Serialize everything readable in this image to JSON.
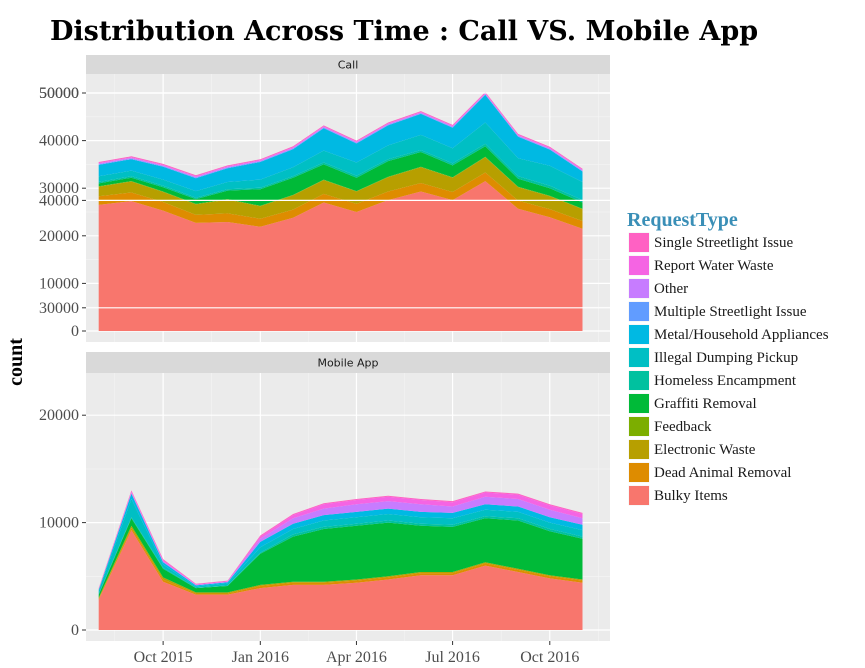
{
  "chart_data": {
    "type": "area",
    "stacked": true,
    "title": "Distribution Across Time : Call VS. Mobile App",
    "ylabel": "count",
    "xlabel": "",
    "ylim": [
      0,
      55000
    ],
    "yticks": [
      0,
      10000,
      20000,
      30000,
      40000,
      50000
    ],
    "xticks": [
      {
        "label": "Oct 2015",
        "date": "2015-10-01"
      },
      {
        "label": "Jan 2016",
        "date": "2016-01-01"
      },
      {
        "label": "Apr 2016",
        "date": "2016-04-01"
      },
      {
        "label": "Jul 2016",
        "date": "2016-07-01"
      },
      {
        "label": "Oct 2016",
        "date": "2016-10-01"
      }
    ],
    "xlim": [
      "2015-07-20",
      "2016-11-27"
    ],
    "grid": true,
    "legend": {
      "title": "RequestType",
      "position": "right",
      "items": [
        {
          "label": "Single Streetlight Issue",
          "color": "#FF61C3"
        },
        {
          "label": "Report Water Waste",
          "color": "#F564E3"
        },
        {
          "label": "Other",
          "color": "#C77CFF"
        },
        {
          "label": "Multiple Streetlight Issue",
          "color": "#619CFF"
        },
        {
          "label": "Metal/Household Appliances",
          "color": "#00B9E3"
        },
        {
          "label": "Illegal Dumping Pickup",
          "color": "#00BFC4"
        },
        {
          "label": "Homeless Encampment",
          "color": "#00C19F"
        },
        {
          "label": "Graffiti Removal",
          "color": "#00BA38"
        },
        {
          "label": "Feedback",
          "color": "#7CAE00"
        },
        {
          "label": "Electronic Waste",
          "color": "#B79F00"
        },
        {
          "label": "Dead Animal Removal",
          "color": "#DE8C00"
        },
        {
          "label": "Bulky Items",
          "color": "#F8766D"
        }
      ]
    },
    "dates": [
      "2015-08-01",
      "2015-09-01",
      "2015-10-01",
      "2015-11-01",
      "2015-12-01",
      "2016-01-01",
      "2016-02-01",
      "2016-03-01",
      "2016-04-01",
      "2016-05-01",
      "2016-06-01",
      "2016-07-01",
      "2016-08-01",
      "2016-09-01",
      "2016-10-01",
      "2016-11-01"
    ],
    "panels": [
      {
        "label": "Call",
        "series": [
          {
            "name": "Bulky Items",
            "values": [
              26500,
              27300,
              25300,
              22700,
              22900,
              21900,
              23800,
              27000,
              25000,
              27500,
              29300,
              27500,
              31500,
              25700,
              23900,
              21500
            ]
          },
          {
            "name": "Dead Animal Removal",
            "values": [
              1800,
              1800,
              1800,
              1700,
              1800,
              1700,
              1700,
              1800,
              1700,
              1800,
              1800,
              1700,
              1800,
              1700,
              1700,
              1600
            ]
          },
          {
            "name": "Electronic Waste",
            "values": [
              2000,
              2300,
              2100,
              2200,
              2900,
              2600,
              3000,
              2900,
              2600,
              3000,
              3300,
              3000,
              3200,
              2800,
              2700,
              2500
            ]
          },
          {
            "name": "Feedback",
            "values": [
              100,
              100,
              100,
              100,
              100,
              100,
              100,
              100,
              100,
              100,
              100,
              100,
              100,
              100,
              100,
              100
            ]
          },
          {
            "name": "Graffiti Removal",
            "values": [
              600,
              700,
              900,
              1000,
              1800,
              3500,
              3600,
              3200,
              2800,
              3300,
              3100,
              2500,
              2200,
              1700,
              1600,
              1300
            ]
          },
          {
            "name": "Homeless Encampment",
            "values": [
              300,
              300,
              300,
              300,
              300,
              300,
              300,
              400,
              400,
              400,
              400,
              400,
              500,
              500,
              500,
              500
            ]
          },
          {
            "name": "Illegal Dumping Pickup",
            "values": [
              1200,
              1200,
              1300,
              1400,
              1500,
              1700,
              1900,
              2500,
              2800,
              2900,
              3200,
              3200,
              4500,
              3800,
              4200,
              3800
            ]
          },
          {
            "name": "Metal/Household Appliances",
            "values": [
              2400,
              2400,
              2700,
              2700,
              2900,
              3700,
              3800,
              4700,
              4000,
              4200,
              4400,
              4300,
              5800,
              4500,
              3400,
              2200
            ]
          },
          {
            "name": "Multiple Streetlight Issue",
            "values": [
              100,
              100,
              100,
              100,
              100,
              100,
              100,
              100,
              100,
              100,
              100,
              100,
              100,
              100,
              100,
              100
            ]
          },
          {
            "name": "Other",
            "values": [
              200,
              200,
              200,
              200,
              200,
              200,
              200,
              200,
              200,
              200,
              200,
              200,
              200,
              200,
              200,
              200
            ]
          },
          {
            "name": "Report Water Waste",
            "values": [
              100,
              100,
              100,
              100,
              100,
              100,
              100,
              100,
              100,
              100,
              100,
              100,
              100,
              100,
              100,
              100
            ]
          },
          {
            "name": "Single Streetlight Issue",
            "values": [
              200,
              200,
              200,
              200,
              200,
              200,
              200,
              200,
              200,
              200,
              200,
              200,
              200,
              200,
              200,
              200
            ]
          }
        ]
      },
      {
        "label": "Mobile App",
        "series": [
          {
            "name": "Bulky Items",
            "values": [
              2800,
              9300,
              4500,
              3300,
              3300,
              3900,
              4200,
              4200,
              4400,
              4700,
              5100,
              5100,
              6000,
              5400,
              4800,
              4400
            ]
          },
          {
            "name": "Dead Animal Removal",
            "values": [
              100,
              200,
              200,
              100,
              100,
              200,
              200,
              200,
              200,
              200,
              200,
              200,
              200,
              200,
              200,
              200
            ]
          },
          {
            "name": "Electronic Waste",
            "values": [
              100,
              200,
              200,
              100,
              100,
              100,
              100,
              100,
              100,
              100,
              100,
              100,
              100,
              100,
              100,
              100
            ]
          },
          {
            "name": "Feedback",
            "values": [
              0,
              0,
              0,
              0,
              0,
              0,
              0,
              0,
              0,
              0,
              0,
              0,
              0,
              0,
              0,
              0
            ]
          },
          {
            "name": "Graffiti Removal",
            "values": [
              300,
              700,
              800,
              400,
              600,
              2900,
              4200,
              4900,
              5000,
              5000,
              4300,
              4200,
              4100,
              4500,
              4100,
              3800
            ]
          },
          {
            "name": "Homeless Encampment",
            "values": [
              50,
              100,
              100,
              50,
              50,
              100,
              200,
              200,
              200,
              200,
              200,
              200,
              200,
              200,
              200,
              200
            ]
          },
          {
            "name": "Illegal Dumping Pickup",
            "values": [
              300,
              1700,
              300,
              100,
              200,
              500,
              500,
              600,
              600,
              600,
              600,
              600,
              600,
              600,
              600,
              600
            ]
          },
          {
            "name": "Metal/Household Appliances",
            "values": [
              100,
              500,
              200,
              100,
              100,
              500,
              500,
              500,
              500,
              500,
              500,
              500,
              500,
              500,
              500,
              500
            ]
          },
          {
            "name": "Multiple Streetlight Issue",
            "values": [
              0,
              0,
              0,
              0,
              0,
              0,
              0,
              0,
              0,
              0,
              0,
              0,
              0,
              0,
              0,
              0
            ]
          },
          {
            "name": "Other",
            "values": [
              50,
              100,
              100,
              50,
              50,
              300,
              500,
              600,
              700,
              700,
              700,
              600,
              700,
              700,
              700,
              600
            ]
          },
          {
            "name": "Report Water Waste",
            "values": [
              50,
              100,
              100,
              50,
              50,
              200,
              300,
              400,
              400,
              400,
              400,
              400,
              400,
              400,
              400,
              400
            ]
          },
          {
            "name": "Single Streetlight Issue",
            "values": [
              50,
              100,
              100,
              50,
              50,
              100,
              100,
              100,
              100,
              100,
              100,
              100,
              100,
              100,
              100,
              100
            ]
          }
        ]
      }
    ]
  }
}
